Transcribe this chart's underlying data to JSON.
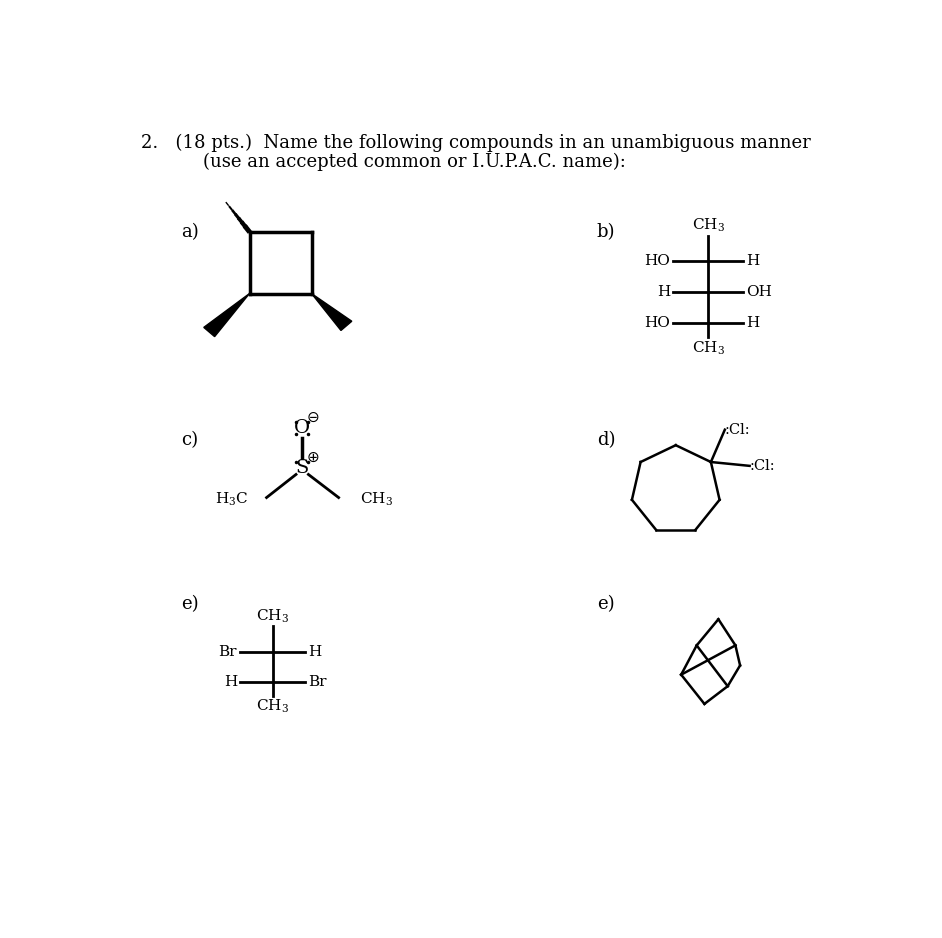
{
  "title_line1": "2.   (18 pts.)  Name the following compounds in an unambiguous manner",
  "title_line2": "(use an accepted common or I.U.P.A.C. name):",
  "bg_color": "#ffffff",
  "text_color": "#000000",
  "label_a": "a)",
  "label_b": "b)",
  "label_c": "c)",
  "label_d": "d)",
  "label_e1": "e)",
  "label_e2": "e)"
}
